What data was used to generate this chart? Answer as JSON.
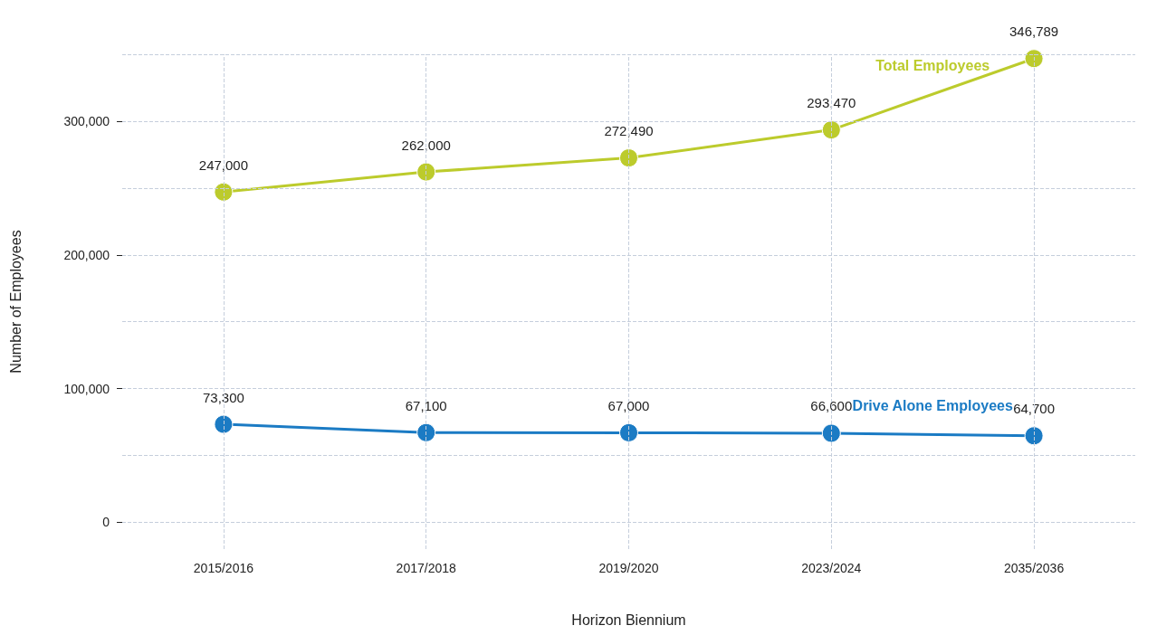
{
  "chart_data": {
    "type": "line",
    "xlabel": "Horizon Biennium",
    "ylabel": "Number of Employees",
    "categories": [
      "2015/2016",
      "2017/2018",
      "2019/2020",
      "2023/2024",
      "2035/2036"
    ],
    "series": [
      {
        "name": "Total Employees",
        "color": "#bccb2c",
        "values": [
          247000,
          262000,
          272490,
          293470,
          346789
        ],
        "value_labels": [
          "247,000",
          "262,000",
          "272,490",
          "293,470",
          "346,789"
        ]
      },
      {
        "name": "Drive Alone Employees",
        "color": "#1b7bc4",
        "values": [
          73300,
          67100,
          67000,
          66600,
          64700
        ],
        "value_labels": [
          "73,300",
          "67,100",
          "67,000",
          "66,600",
          "64,700"
        ]
      }
    ],
    "ylim": [
      -20000,
      350000
    ],
    "yticks": [
      {
        "value": 0,
        "label": "0"
      },
      {
        "value": 50000,
        "label": null
      },
      {
        "value": 100000,
        "label": "100,000"
      },
      {
        "value": 150000,
        "label": null
      },
      {
        "value": 200000,
        "label": "200,000"
      },
      {
        "value": 250000,
        "label": null
      },
      {
        "value": 300000,
        "label": "300,000"
      },
      {
        "value": 350000,
        "label": null
      }
    ],
    "grid": true,
    "marker": "circle",
    "line_style": "solid"
  }
}
